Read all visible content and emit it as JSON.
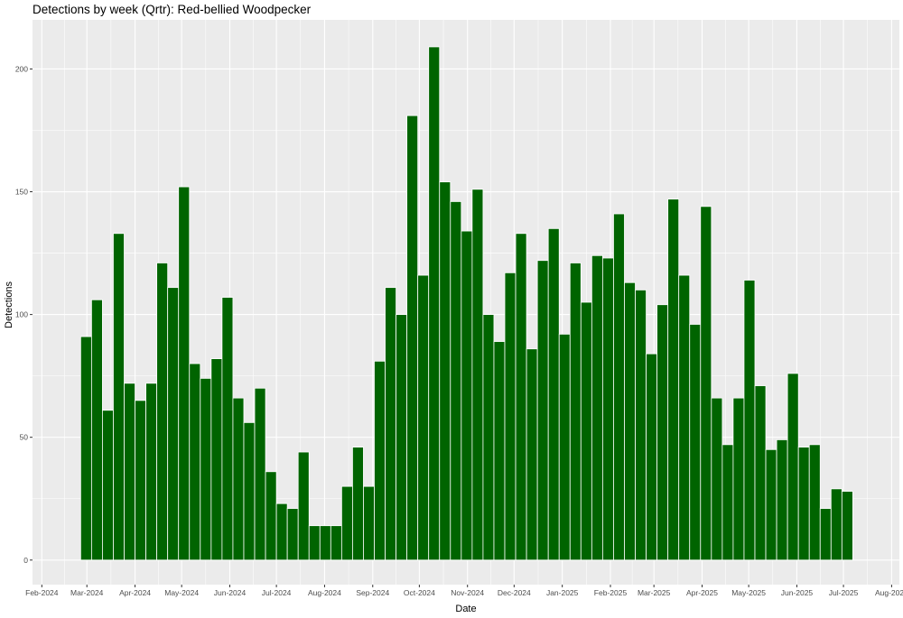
{
  "chart_data": {
    "type": "bar",
    "title": "Detections by week (Qrtr): Red-bellied Woodpecker",
    "xlabel": "Date",
    "ylabel": "Detections",
    "x_range": [
      "2024-01-26",
      "2025-08-06"
    ],
    "ylim": [
      -10,
      220
    ],
    "y_ticks": [
      0,
      50,
      100,
      150,
      200
    ],
    "x_ticks": [
      {
        "date": "2024-02-01",
        "label": "Feb-2024"
      },
      {
        "date": "2024-03-01",
        "label": "Mar-2024"
      },
      {
        "date": "2024-04-01",
        "label": "Apr-2024"
      },
      {
        "date": "2024-05-01",
        "label": "May-2024"
      },
      {
        "date": "2024-06-01",
        "label": "Jun-2024"
      },
      {
        "date": "2024-07-01",
        "label": "Jul-2024"
      },
      {
        "date": "2024-08-01",
        "label": "Aug-2024"
      },
      {
        "date": "2024-09-01",
        "label": "Sep-2024"
      },
      {
        "date": "2024-10-01",
        "label": "Oct-2024"
      },
      {
        "date": "2024-11-01",
        "label": "Nov-2024"
      },
      {
        "date": "2024-12-01",
        "label": "Dec-2024"
      },
      {
        "date": "2025-01-01",
        "label": "Jan-2025"
      },
      {
        "date": "2025-02-01",
        "label": "Feb-2025"
      },
      {
        "date": "2025-03-01",
        "label": "Mar-2025"
      },
      {
        "date": "2025-04-01",
        "label": "Apr-2025"
      },
      {
        "date": "2025-05-01",
        "label": "May-2025"
      },
      {
        "date": "2025-06-01",
        "label": "Jun-2025"
      },
      {
        "date": "2025-07-01",
        "label": "Jul-2025"
      },
      {
        "date": "2025-08-01",
        "label": "Aug-2025"
      }
    ],
    "grid": true,
    "legend": "none",
    "bar_color": "#006400",
    "panel_color": "#ebebeb",
    "x": [
      "2024-02-26",
      "2024-03-04",
      "2024-03-11",
      "2024-03-18",
      "2024-03-25",
      "2024-04-01",
      "2024-04-08",
      "2024-04-15",
      "2024-04-22",
      "2024-04-29",
      "2024-05-06",
      "2024-05-13",
      "2024-05-20",
      "2024-05-27",
      "2024-06-03",
      "2024-06-10",
      "2024-06-17",
      "2024-06-24",
      "2024-07-01",
      "2024-07-08",
      "2024-07-15",
      "2024-07-22",
      "2024-07-29",
      "2024-08-05",
      "2024-08-12",
      "2024-08-19",
      "2024-08-26",
      "2024-09-02",
      "2024-09-09",
      "2024-09-16",
      "2024-09-23",
      "2024-09-30",
      "2024-10-07",
      "2024-10-14",
      "2024-10-21",
      "2024-10-28",
      "2024-11-04",
      "2024-11-11",
      "2024-11-18",
      "2024-11-25",
      "2024-12-02",
      "2024-12-09",
      "2024-12-16",
      "2024-12-23",
      "2024-12-30",
      "2025-01-06",
      "2025-01-13",
      "2025-01-20",
      "2025-01-27",
      "2025-02-03",
      "2025-02-10",
      "2025-02-17",
      "2025-02-24",
      "2025-03-03",
      "2025-03-10",
      "2025-03-17",
      "2025-03-24",
      "2025-03-31",
      "2025-04-07",
      "2025-04-14",
      "2025-04-21",
      "2025-04-28",
      "2025-05-05",
      "2025-05-12",
      "2025-05-19",
      "2025-05-26",
      "2025-06-02",
      "2025-06-09",
      "2025-06-16",
      "2025-06-23",
      "2025-06-30"
    ],
    "values": [
      91,
      106,
      61,
      133,
      72,
      65,
      72,
      121,
      111,
      152,
      80,
      74,
      82,
      107,
      66,
      56,
      70,
      36,
      23,
      21,
      44,
      14,
      14,
      14,
      30,
      46,
      30,
      81,
      111,
      100,
      181,
      116,
      209,
      154,
      146,
      134,
      151,
      100,
      89,
      117,
      133,
      86,
      122,
      135,
      92,
      121,
      105,
      124,
      123,
      141,
      113,
      110,
      84,
      104,
      147,
      116,
      96,
      144,
      66,
      47,
      66,
      114,
      71,
      45,
      49,
      76,
      46,
      47,
      21,
      29,
      28
    ]
  }
}
